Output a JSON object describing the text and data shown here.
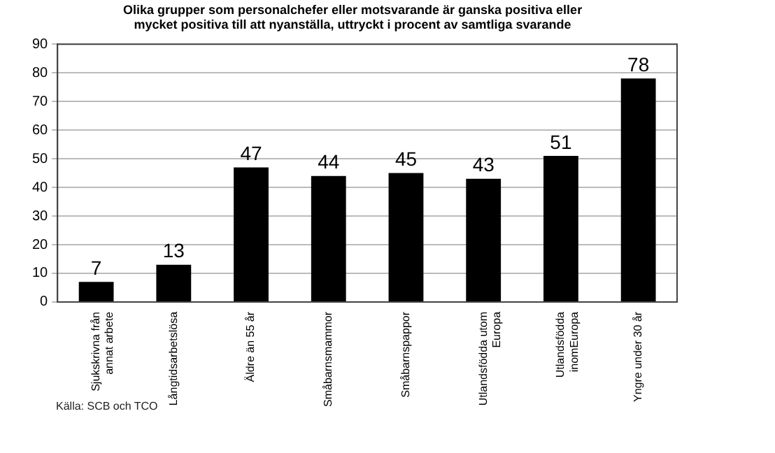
{
  "chart_data": {
    "type": "bar",
    "title": "Olika grupper som personalchefer eller motsvarande är ganska positiva eller\nmycket positiva till att nyanställa, uttryckt i procent av samtliga svarande",
    "categories": [
      "Sjukskrivna från\nannat arbete",
      "Långtidsarbetslösa",
      "Äldre än 55 år",
      "Småbarnsmammor",
      "Småbarnspappor",
      "Utlandsfödda utom\nEuropa",
      "Utlandsfödda\ninomEuropa",
      "Yngre under 30 år"
    ],
    "values": [
      7,
      13,
      47,
      44,
      45,
      43,
      51,
      78
    ],
    "color": "#000000",
    "ylim": [
      0,
      90
    ],
    "yticks": [
      0,
      10,
      20,
      30,
      40,
      50,
      60,
      70,
      80,
      90
    ],
    "grid": "y",
    "data_labels": true,
    "annotations": [
      "Källa: SCB och TCO"
    ]
  }
}
